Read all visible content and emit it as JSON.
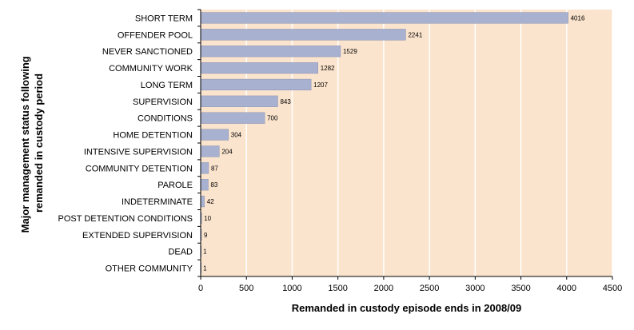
{
  "chart_data": {
    "type": "bar",
    "orientation": "horizontal",
    "categories": [
      "SHORT TERM",
      "OFFENDER POOL",
      "NEVER SANCTIONED",
      "COMMUNITY WORK",
      "LONG TERM",
      "SUPERVISION",
      "CONDITIONS",
      "HOME DETENTION",
      "INTENSIVE SUPERVISION",
      "COMMUNITY DETENTION",
      "PAROLE",
      "INDETERMINATE",
      "POST DETENTION CONDITIONS",
      "EXTENDED SUPERVISION",
      "DEAD",
      "OTHER COMMUNITY"
    ],
    "values": [
      4016,
      2241,
      1529,
      1282,
      1207,
      843,
      700,
      304,
      204,
      87,
      83,
      42,
      10,
      9,
      1,
      1
    ],
    "xlabel": "Remanded in custody episode ends in 2008/09",
    "ylabel": "Major management status following remanded in custody period",
    "ylabel_lines": [
      "Major management status following",
      "remanded in custody period"
    ],
    "xlim": [
      0,
      4500
    ],
    "xticks": [
      0,
      500,
      1000,
      1500,
      2000,
      2500,
      3000,
      3500,
      4000,
      4500
    ],
    "grid": "vertical",
    "legend": "none",
    "colors": {
      "bar": "#a8b1d0",
      "bar_edge": "#7f88aa",
      "plot_bg": "#fbe4cd",
      "grid": "#ffffff",
      "axis": "#000000"
    }
  }
}
